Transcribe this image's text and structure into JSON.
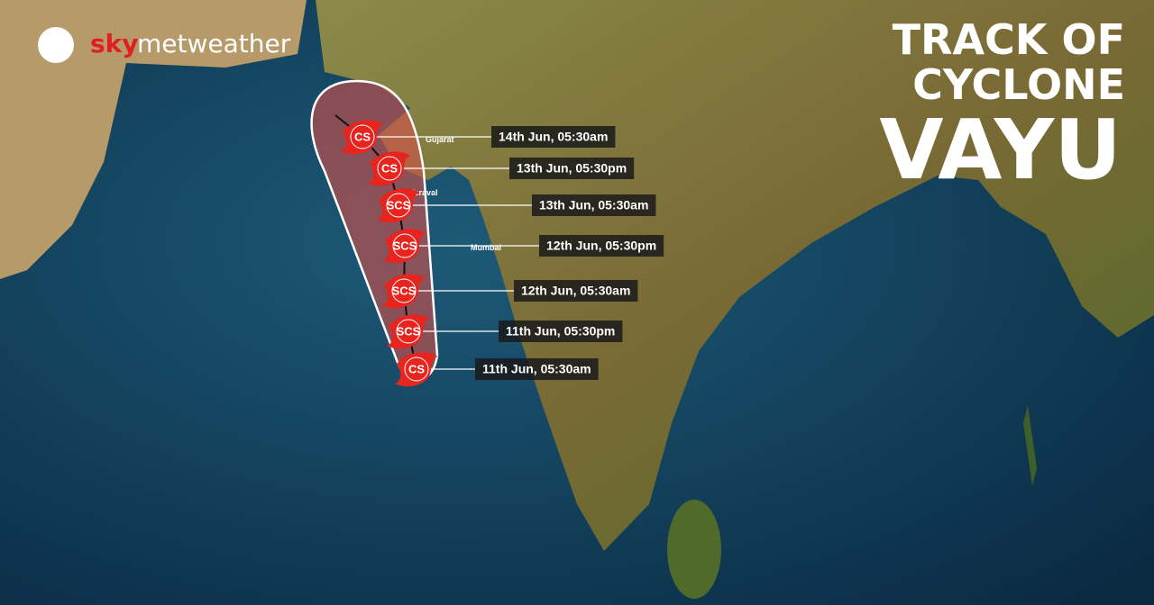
{
  "logo": {
    "brand_a": "sky",
    "brand_b": "metweather"
  },
  "title": [
    "TRACK OF",
    "CYCLONE",
    "VAYU"
  ],
  "places": [
    "Gujarat",
    "Veraval",
    "Mumbai"
  ],
  "track": [
    {
      "category": "CS",
      "time": "14th Jun, 05:30am"
    },
    {
      "category": "CS",
      "time": "13th Jun, 05:30pm"
    },
    {
      "category": "SCS",
      "time": "13th Jun, 05:30am"
    },
    {
      "category": "SCS",
      "time": "12th Jun, 05:30pm"
    },
    {
      "category": "SCS",
      "time": "12th Jun, 05:30am"
    },
    {
      "category": "SCS",
      "time": "11th Jun, 05:30pm"
    },
    {
      "category": "CS",
      "time": "11th Jun, 05:30am"
    }
  ]
}
